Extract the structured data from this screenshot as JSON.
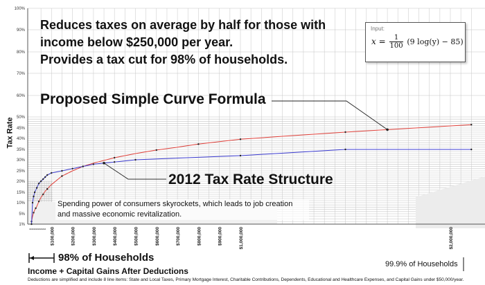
{
  "headline_lines": [
    "Reduces taxes on average by half for those with",
    "income below $250,000 per year.",
    "Provides a tax cut for 98% of households."
  ],
  "formula": {
    "input_label": "Input:",
    "lhs": "x =",
    "frac_num": "1",
    "frac_den": "100",
    "rhs": "(9 log(y) − 85)"
  },
  "annotations": {
    "proposed": "Proposed Simple Curve Formula",
    "structure_2012": "2012 Tax Rate Structure",
    "spending_note": "Spending power of consumers skyrockets, which leads to job creation and massive economic revitalization.",
    "pct_98": "98% of Households",
    "pct_999": "99.9% of Households"
  },
  "footnote": "Deductions are simplified and include 8 line items: State and Local Taxes, Primary Mortgage Interest, Charitable Contributions, Dependents, Educational and Healthcare Expenses, and Capital Gains under $50,000/year.",
  "colors": {
    "proposed": "#e0403a",
    "structure_2012": "#3a3ad0",
    "grid": "#bdbdbd",
    "background": "#ffffff"
  },
  "chart_data": {
    "type": "line",
    "xlabel": "Income + Capital Gains After Deductions",
    "ylabel": "Tax Rate",
    "xlim": [
      0,
      2100000
    ],
    "ylim": [
      0,
      100
    ],
    "y_ticks": [
      "1%",
      "5%",
      "10%",
      "15%",
      "20%",
      "25%",
      "30%",
      "35%",
      "40%",
      "45%",
      "50%",
      "60%",
      "70%",
      "80%",
      "90%",
      "100%"
    ],
    "y_tick_values": [
      1,
      5,
      10,
      15,
      20,
      25,
      30,
      35,
      40,
      45,
      50,
      60,
      70,
      80,
      90,
      100
    ],
    "x_tick_labels": [
      "$100,000",
      "$200,000",
      "$300,000",
      "$400,000",
      "$500,000",
      "$600,000",
      "$700,000",
      "$800,000",
      "$900,000",
      "$1,000,000",
      "$2,000,000"
    ],
    "x_tick_values": [
      100000,
      200000,
      300000,
      400000,
      500000,
      600000,
      700000,
      800000,
      900000,
      1000000,
      2000000
    ],
    "grid": true,
    "series": [
      {
        "name": "Proposed Simple Curve Formula",
        "color": "#e0403a",
        "x": [
          5000,
          10000,
          15000,
          20000,
          25000,
          30000,
          40000,
          50000,
          60000,
          70000,
          80000,
          100000,
          150000,
          200000,
          250000,
          300000,
          400000,
          500000,
          600000,
          700000,
          800000,
          900000,
          1000000,
          1200000,
          1500000,
          1700000,
          2100000
        ],
        "y": [
          2,
          4,
          5.5,
          6.7,
          7.5,
          8.3,
          10.6,
          12.5,
          14,
          15.5,
          16.5,
          18.5,
          22.5,
          25,
          27,
          28.5,
          31,
          33,
          34.7,
          36,
          37.4,
          38.5,
          39.6,
          41,
          43,
          44.2,
          46.5
        ]
      },
      {
        "name": "2012 Tax Rate Structure",
        "color": "#3a3ad0",
        "x": [
          5000,
          10000,
          15000,
          20000,
          30000,
          40000,
          50000,
          60000,
          70000,
          80000,
          100000,
          150000,
          200000,
          250000,
          300000,
          350000,
          400000,
          500000,
          1000000,
          1500000,
          2100000
        ],
        "y": [
          1,
          10,
          13,
          15,
          17,
          19,
          20,
          21,
          22,
          23,
          24,
          25,
          26,
          27,
          28,
          28.5,
          29,
          30,
          32,
          35,
          35
        ]
      }
    ]
  }
}
